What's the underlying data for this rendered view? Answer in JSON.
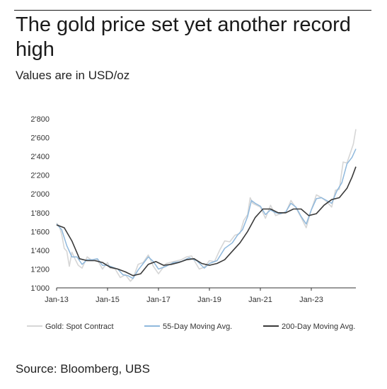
{
  "header": {
    "title": "The gold price set yet another record high",
    "subtitle": "Values are in USD/oz"
  },
  "footer": {
    "source": "Source: Bloomberg, UBS"
  },
  "colors": {
    "spot": "#d6d6d6",
    "ma55": "#8fb8dc",
    "ma200": "#3a3a3a",
    "axis": "#333333",
    "text": "#333333"
  },
  "chart_data": {
    "type": "line",
    "title": "",
    "xlabel": "",
    "ylabel": "",
    "ylim": [
      1000,
      2800
    ],
    "yticks": [
      1000,
      1200,
      1400,
      1600,
      1800,
      2000,
      2200,
      2400,
      2600,
      2800
    ],
    "ytick_labels": [
      "1'000",
      "1'200",
      "1'400",
      "1'600",
      "1'800",
      "2'000",
      "2'200",
      "2'400",
      "2'600",
      "2'800"
    ],
    "xlim": [
      2013.0,
      2024.75
    ],
    "xticks": [
      2013,
      2015,
      2017,
      2019,
      2021,
      2023
    ],
    "xtick_labels": [
      "Jan-13",
      "Jan-15",
      "Jan-17",
      "Jan-19",
      "Jan-21",
      "Jan-23"
    ],
    "grid": false,
    "legend_position": "bottom",
    "series": [
      {
        "name": "Gold: Spot Contract",
        "x": [
          2013.0,
          2013.1,
          2013.2,
          2013.3,
          2013.4,
          2013.5,
          2013.6,
          2013.7,
          2013.85,
          2014.0,
          2014.2,
          2014.4,
          2014.6,
          2014.8,
          2015.0,
          2015.1,
          2015.3,
          2015.5,
          2015.7,
          2015.9,
          2016.0,
          2016.2,
          2016.4,
          2016.6,
          2016.8,
          2017.0,
          2017.3,
          2017.6,
          2017.9,
          2018.1,
          2018.3,
          2018.6,
          2018.8,
          2019.0,
          2019.2,
          2019.4,
          2019.6,
          2019.8,
          2020.0,
          2020.2,
          2020.35,
          2020.5,
          2020.6,
          2020.7,
          2020.85,
          2021.0,
          2021.2,
          2021.4,
          2021.6,
          2021.8,
          2022.0,
          2022.2,
          2022.4,
          2022.6,
          2022.8,
          2023.0,
          2023.2,
          2023.4,
          2023.6,
          2023.8,
          2023.95,
          2024.1,
          2024.25,
          2024.4,
          2024.55,
          2024.65,
          2024.75
        ],
        "values": [
          1690,
          1660,
          1570,
          1420,
          1390,
          1230,
          1380,
          1320,
          1240,
          1210,
          1330,
          1290,
          1300,
          1200,
          1270,
          1210,
          1200,
          1110,
          1140,
          1070,
          1100,
          1250,
          1270,
          1350,
          1230,
          1150,
          1260,
          1280,
          1300,
          1330,
          1340,
          1200,
          1220,
          1290,
          1280,
          1400,
          1500,
          1490,
          1560,
          1580,
          1720,
          1780,
          1960,
          1900,
          1880,
          1860,
          1740,
          1880,
          1770,
          1790,
          1800,
          1930,
          1850,
          1750,
          1640,
          1830,
          1990,
          1960,
          1920,
          1860,
          2040,
          2050,
          2340,
          2330,
          2450,
          2530,
          2690
        ]
      },
      {
        "name": "55-Day Moving Avg.",
        "x": [
          2013.0,
          2013.2,
          2013.4,
          2013.6,
          2013.8,
          2014.0,
          2014.2,
          2014.4,
          2014.6,
          2014.8,
          2015.0,
          2015.2,
          2015.4,
          2015.6,
          2015.8,
          2016.0,
          2016.2,
          2016.4,
          2016.6,
          2016.8,
          2017.0,
          2017.3,
          2017.6,
          2017.9,
          2018.2,
          2018.5,
          2018.8,
          2019.0,
          2019.3,
          2019.6,
          2019.9,
          2020.1,
          2020.3,
          2020.5,
          2020.65,
          2020.8,
          2021.0,
          2021.2,
          2021.4,
          2021.6,
          2021.8,
          2022.0,
          2022.2,
          2022.4,
          2022.6,
          2022.8,
          2023.0,
          2023.2,
          2023.4,
          2023.6,
          2023.8,
          2024.0,
          2024.2,
          2024.4,
          2024.6,
          2024.75
        ],
        "values": [
          1680,
          1620,
          1450,
          1330,
          1330,
          1250,
          1300,
          1300,
          1310,
          1240,
          1240,
          1220,
          1200,
          1140,
          1130,
          1100,
          1190,
          1260,
          1330,
          1280,
          1200,
          1230,
          1270,
          1280,
          1320,
          1290,
          1210,
          1260,
          1290,
          1420,
          1480,
          1560,
          1620,
          1760,
          1930,
          1900,
          1870,
          1780,
          1830,
          1800,
          1790,
          1810,
          1900,
          1860,
          1760,
          1680,
          1830,
          1950,
          1960,
          1930,
          1900,
          2030,
          2120,
          2320,
          2390,
          2480
        ]
      },
      {
        "name": "200-Day Moving Avg.",
        "x": [
          2013.0,
          2013.3,
          2013.6,
          2013.9,
          2014.2,
          2014.5,
          2014.8,
          2015.1,
          2015.4,
          2015.7,
          2016.0,
          2016.3,
          2016.6,
          2016.9,
          2017.2,
          2017.5,
          2017.8,
          2018.1,
          2018.4,
          2018.7,
          2019.0,
          2019.3,
          2019.6,
          2019.9,
          2020.2,
          2020.5,
          2020.8,
          2021.1,
          2021.4,
          2021.7,
          2022.0,
          2022.3,
          2022.6,
          2022.9,
          2023.2,
          2023.5,
          2023.8,
          2024.1,
          2024.4,
          2024.6,
          2024.75
        ],
        "values": [
          1670,
          1640,
          1500,
          1310,
          1290,
          1290,
          1270,
          1220,
          1200,
          1170,
          1130,
          1150,
          1250,
          1280,
          1240,
          1250,
          1270,
          1300,
          1310,
          1260,
          1240,
          1260,
          1300,
          1390,
          1480,
          1600,
          1750,
          1840,
          1840,
          1800,
          1800,
          1840,
          1840,
          1770,
          1790,
          1880,
          1940,
          1960,
          2060,
          2180,
          2290
        ]
      }
    ]
  }
}
